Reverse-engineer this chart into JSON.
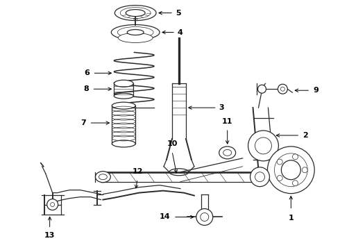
{
  "bg_color": "#ffffff",
  "line_color": "#2a2a2a",
  "label_color": "#000000",
  "figsize": [
    4.9,
    3.6
  ],
  "dpi": 100
}
